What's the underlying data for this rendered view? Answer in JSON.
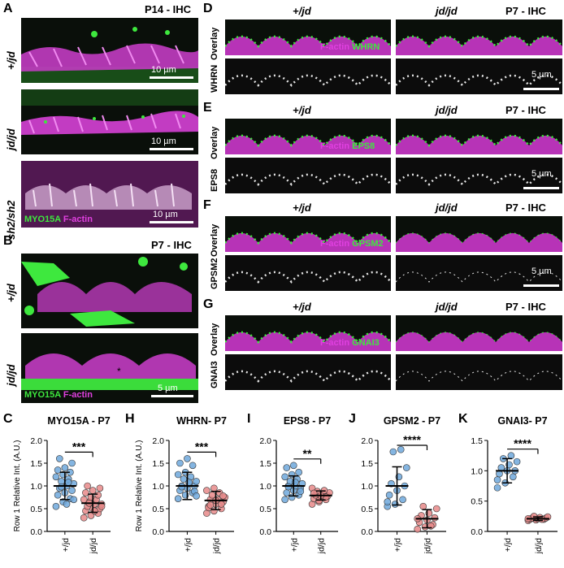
{
  "panels": {
    "A": {
      "letter": "A",
      "stage": "P14 - IHC",
      "rows": [
        "+/jd",
        "jd/jd",
        "sh2/sh2"
      ],
      "scale": "10 µm",
      "stain1": "MYO15A",
      "stain2": "F-actin"
    },
    "B": {
      "letter": "B",
      "stage": "P7 - IHC",
      "rows": [
        "+/jd",
        "jd/jd"
      ],
      "scale": "5 µm",
      "stain1": "MYO15A",
      "stain2": "F-actin",
      "marker": "*"
    },
    "D": {
      "letter": "D",
      "stage": "P7 - IHC",
      "cols": [
        "+/jd",
        "jd/jd"
      ],
      "rows": [
        "Overlay",
        "WHRN"
      ],
      "stain1": "F-actin",
      "stain2": "WHRN",
      "scale": "5 µm"
    },
    "E": {
      "letter": "E",
      "stage": "P7 - IHC",
      "cols": [
        "+/jd",
        "jd/jd"
      ],
      "rows": [
        "Overlay",
        "EPS8"
      ],
      "stain1": "F-actin",
      "stain2": "EPS8",
      "scale": "5 µm"
    },
    "F": {
      "letter": "F",
      "stage": "P7 - IHC",
      "cols": [
        "+/jd",
        "jd/jd"
      ],
      "rows": [
        "Overlay",
        "GPSM2"
      ],
      "stain1": "F-actin",
      "stain2": "GPSM2",
      "scale": "5 µm"
    },
    "G": {
      "letter": "G",
      "stage": "P7 - IHC",
      "cols": [
        "+/jd",
        "jd/jd"
      ],
      "rows": [
        "Overlay",
        "GNAI3"
      ],
      "stain1": "F-actin",
      "stain2": "GNAI3",
      "scale": ""
    }
  },
  "colors": {
    "magenta": "#d63ad6",
    "green": "#3ee83e",
    "blue_points": "#6fa8dc",
    "red_points": "#e88a8a"
  },
  "chart_data": [
    {
      "id": "C",
      "letter": "C",
      "type": "scatter",
      "title": "MYO15A - P7",
      "ylabel": "Row 1 Relative Int. (A.U.)",
      "categories": [
        "+/jd",
        "jd/jd"
      ],
      "ylim": [
        0,
        2.0
      ],
      "yticks": [
        "0.0",
        "0.5",
        "1.0",
        "1.5",
        "2.0"
      ],
      "significance": "***",
      "series": [
        {
          "values": [
            0.55,
            0.65,
            0.72,
            0.8,
            0.85,
            0.9,
            0.95,
            1.0,
            1.05,
            1.1,
            1.15,
            1.2,
            1.25,
            1.3,
            1.35,
            1.4,
            1.5,
            1.6,
            0.6,
            0.7,
            0.98,
            1.08
          ],
          "mean": 1.0,
          "sd": 0.3
        },
        {
          "values": [
            0.3,
            0.35,
            0.4,
            0.45,
            0.5,
            0.5,
            0.55,
            0.6,
            0.6,
            0.65,
            0.7,
            0.7,
            0.75,
            0.8,
            0.85,
            0.9,
            0.95,
            1.0,
            0.45,
            0.55,
            0.62
          ],
          "mean": 0.62,
          "sd": 0.2
        }
      ]
    },
    {
      "id": "H",
      "letter": "H",
      "type": "scatter",
      "title": "WHRN- P7",
      "ylabel": "Row 1 Relative Int. (A.U.)",
      "categories": [
        "+/jd",
        "jd/jd"
      ],
      "ylim": [
        0,
        2.0
      ],
      "yticks": [
        "0.0",
        "0.5",
        "1.0",
        "1.5",
        "2.0"
      ],
      "significance": "***",
      "series": [
        {
          "values": [
            0.72,
            0.8,
            0.85,
            0.9,
            0.95,
            1.0,
            1.0,
            1.05,
            1.1,
            1.15,
            1.2,
            1.25,
            1.3,
            1.45,
            1.5,
            1.6,
            0.88,
            0.98,
            1.08,
            0.78
          ],
          "mean": 1.0,
          "sd": 0.3
        },
        {
          "values": [
            0.4,
            0.45,
            0.5,
            0.55,
            0.6,
            0.65,
            0.7,
            0.7,
            0.75,
            0.8,
            0.85,
            0.9,
            0.95,
            0.6,
            0.52,
            0.68,
            0.78,
            0.58
          ],
          "mean": 0.68,
          "sd": 0.2
        }
      ]
    },
    {
      "id": "I",
      "letter": "I",
      "type": "scatter",
      "title": "EPS8 - P7",
      "ylabel": "",
      "categories": [
        "+/jd",
        "jd/jd"
      ],
      "ylim": [
        0,
        2.0
      ],
      "yticks": [
        "0.0",
        "0.5",
        "1.0",
        "1.5",
        "2.0"
      ],
      "significance": "**",
      "series": [
        {
          "values": [
            0.7,
            0.75,
            0.8,
            0.85,
            0.9,
            0.95,
            1.0,
            1.0,
            1.05,
            1.1,
            1.15,
            1.2,
            1.25,
            1.3,
            1.4,
            1.45,
            0.88,
            0.98,
            1.08
          ],
          "mean": 1.0,
          "sd": 0.22
        },
        {
          "values": [
            0.6,
            0.65,
            0.7,
            0.72,
            0.75,
            0.78,
            0.8,
            0.82,
            0.85,
            0.88,
            0.9,
            0.95,
            0.68,
            0.76,
            0.84,
            0.79
          ],
          "mean": 0.79,
          "sd": 0.1
        }
      ]
    },
    {
      "id": "J",
      "letter": "J",
      "type": "scatter",
      "title": "GPSM2 - P7",
      "ylabel": "",
      "categories": [
        "+/jd",
        "jd/jd"
      ],
      "ylim": [
        0,
        2.0
      ],
      "yticks": [
        "0.0",
        "0.5",
        "1.0",
        "1.5",
        "2.0"
      ],
      "significance": "****",
      "series": [
        {
          "values": [
            0.55,
            0.6,
            0.7,
            0.8,
            0.9,
            1.0,
            1.05,
            1.2,
            1.4,
            1.75,
            1.8,
            0.65
          ],
          "mean": 1.0,
          "sd": 0.42
        },
        {
          "values": [
            0.05,
            0.1,
            0.15,
            0.2,
            0.25,
            0.3,
            0.35,
            0.4,
            0.5,
            0.55,
            0.12,
            0.28
          ],
          "mean": 0.28,
          "sd": 0.2
        }
      ]
    },
    {
      "id": "K",
      "letter": "K",
      "type": "scatter",
      "title": "GNAI3- P7",
      "ylabel": "",
      "categories": [
        "+/jd",
        "jd/jd"
      ],
      "ylim": [
        0,
        1.5
      ],
      "yticks": [
        "0.0",
        "0.5",
        "1.0",
        "1.5"
      ],
      "significance": "****",
      "series": [
        {
          "values": [
            0.72,
            0.8,
            0.9,
            0.95,
            1.0,
            1.0,
            1.05,
            1.1,
            1.15,
            1.2,
            1.25,
            0.85
          ],
          "mean": 1.0,
          "sd": 0.2
        },
        {
          "values": [
            0.18,
            0.19,
            0.2,
            0.2,
            0.21,
            0.22,
            0.22,
            0.23,
            0.24,
            0.25,
            0.2,
            0.21
          ],
          "mean": 0.21,
          "sd": 0.03
        }
      ]
    }
  ]
}
